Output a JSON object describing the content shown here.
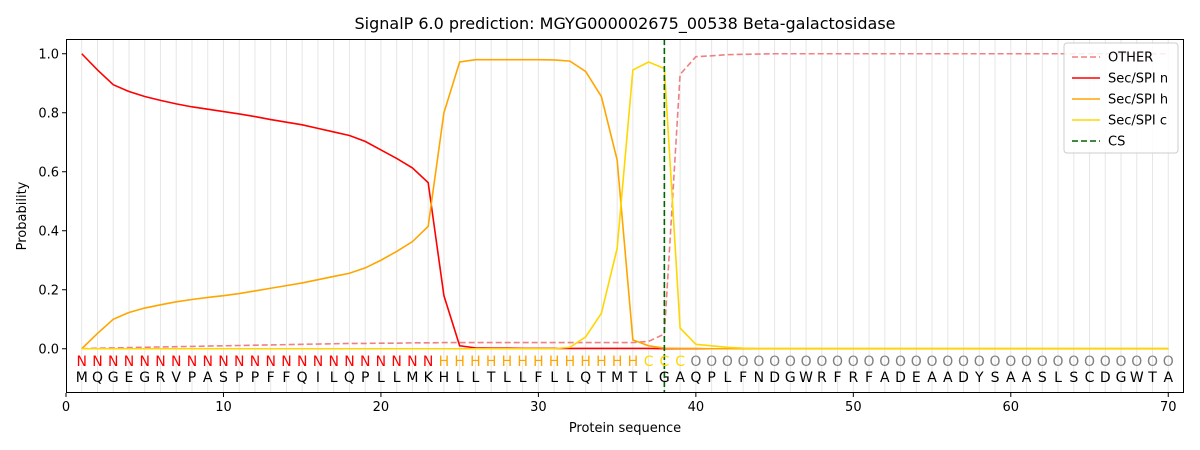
{
  "chart_data": {
    "type": "line",
    "title": "SignalP 6.0 prediction: MGYG000002675_00538 Beta-galactosidase",
    "xlabel": "Protein sequence",
    "ylabel": "Probability",
    "xlim": [
      0,
      71
    ],
    "ylim": [
      -0.15,
      1.05
    ],
    "xticks": [
      0,
      10,
      20,
      30,
      40,
      50,
      60,
      70
    ],
    "yticks": [
      0.0,
      0.2,
      0.4,
      0.6,
      0.8,
      1.0
    ],
    "ytick_labels": [
      "0.0",
      "0.2",
      "0.4",
      "0.6",
      "0.8",
      "1.0"
    ],
    "grid": "vertical lines at each residue",
    "legend_position": "top-right",
    "cleavage_site": 38,
    "sequence": "MQGEGRVPASPPFFQILQPLLMKHLLTLLFLLQTMTLGAQPLFNDGWRFRFADEAADYSAASLSCDGWTA",
    "labels": "NNNNNNNNNNNNNNNNNNNNNNNHHHHHHHHHHHHHCCCOOOOOOOOOOOOOOOOOOOOOOOOOOOOOOOO",
    "label_colors": {
      "N": "#ff0000",
      "H": "#ffa500",
      "C": "#ffd700",
      "O": "#808080"
    },
    "x": [
      1,
      2,
      3,
      4,
      5,
      6,
      7,
      8,
      9,
      10,
      11,
      12,
      13,
      14,
      15,
      16,
      17,
      18,
      19,
      20,
      21,
      22,
      23,
      24,
      25,
      26,
      27,
      28,
      29,
      30,
      31,
      32,
      33,
      34,
      35,
      36,
      37,
      38,
      39,
      40,
      41,
      42,
      43,
      44,
      45,
      46,
      47,
      48,
      49,
      50,
      51,
      52,
      53,
      54,
      55,
      56,
      57,
      58,
      59,
      60,
      61,
      62,
      63,
      64,
      65,
      66,
      67,
      68,
      69,
      70
    ],
    "series": [
      {
        "name": "OTHER",
        "color": "#f08080",
        "dash": true,
        "values": [
          0.0,
          0.002,
          0.003,
          0.004,
          0.005,
          0.006,
          0.007,
          0.008,
          0.009,
          0.01,
          0.011,
          0.012,
          0.013,
          0.014,
          0.015,
          0.016,
          0.017,
          0.018,
          0.018,
          0.019,
          0.019,
          0.02,
          0.02,
          0.021,
          0.021,
          0.021,
          0.021,
          0.021,
          0.021,
          0.021,
          0.021,
          0.021,
          0.021,
          0.021,
          0.021,
          0.021,
          0.025,
          0.05,
          0.93,
          0.99,
          0.993,
          0.997,
          0.998,
          0.999,
          1.0,
          1.0,
          1.0,
          1.0,
          1.0,
          1.0,
          1.0,
          1.0,
          1.0,
          1.0,
          1.0,
          1.0,
          1.0,
          1.0,
          1.0,
          1.0,
          1.0,
          1.0,
          1.0,
          1.0,
          1.0,
          1.0,
          1.0,
          1.0,
          1.0,
          1.0
        ]
      },
      {
        "name": "Sec/SPI n",
        "color": "#ff0000",
        "dash": false,
        "values": [
          1.0,
          0.945,
          0.895,
          0.872,
          0.855,
          0.842,
          0.83,
          0.82,
          0.812,
          0.804,
          0.796,
          0.787,
          0.777,
          0.768,
          0.759,
          0.747,
          0.735,
          0.723,
          0.703,
          0.674,
          0.645,
          0.613,
          0.563,
          0.18,
          0.01,
          0.003,
          0.002,
          0.002,
          0.001,
          0.001,
          0.001,
          0.001,
          0.001,
          0.001,
          0.001,
          0.001,
          0.001,
          0.0,
          0.0,
          0.0,
          0.0,
          0.0,
          0.0,
          0.0,
          0.0,
          0.0,
          0.0,
          0.0,
          0.0,
          0.0,
          0.0,
          0.0,
          0.0,
          0.0,
          0.0,
          0.0,
          0.0,
          0.0,
          0.0,
          0.0,
          0.0,
          0.0,
          0.0,
          0.0,
          0.0,
          0.0,
          0.0,
          0.0,
          0.0,
          0.0
        ]
      },
      {
        "name": "Sec/SPI h",
        "color": "#ffa500",
        "dash": false,
        "values": [
          0.0,
          0.052,
          0.1,
          0.123,
          0.138,
          0.149,
          0.159,
          0.167,
          0.174,
          0.18,
          0.187,
          0.196,
          0.205,
          0.214,
          0.223,
          0.234,
          0.245,
          0.256,
          0.274,
          0.3,
          0.33,
          0.363,
          0.415,
          0.8,
          0.972,
          0.98,
          0.98,
          0.98,
          0.98,
          0.98,
          0.979,
          0.975,
          0.94,
          0.855,
          0.64,
          0.03,
          0.01,
          0.002,
          0.001,
          0.001,
          0.0,
          0.0,
          0.0,
          0.0,
          0.0,
          0.0,
          0.0,
          0.0,
          0.0,
          0.0,
          0.0,
          0.0,
          0.0,
          0.0,
          0.0,
          0.0,
          0.0,
          0.0,
          0.0,
          0.0,
          0.0,
          0.0,
          0.0,
          0.0,
          0.0,
          0.0,
          0.0,
          0.0,
          0.0,
          0.0
        ]
      },
      {
        "name": "Sec/SPI c",
        "color": "#ffd700",
        "dash": false,
        "values": [
          0.0,
          0.0,
          0.0,
          0.0,
          0.0,
          0.0,
          0.0,
          0.0,
          0.0,
          0.0,
          0.0,
          0.0,
          0.0,
          0.0,
          0.0,
          0.0,
          0.0,
          0.0,
          0.0,
          0.0,
          0.0,
          0.0,
          0.0,
          0.0,
          0.0,
          0.0,
          0.0,
          0.0,
          0.0,
          0.0,
          0.0,
          0.005,
          0.04,
          0.12,
          0.34,
          0.945,
          0.972,
          0.95,
          0.07,
          0.015,
          0.01,
          0.005,
          0.002,
          0.001,
          0.001,
          0.001,
          0.001,
          0.001,
          0.001,
          0.001,
          0.001,
          0.001,
          0.001,
          0.001,
          0.001,
          0.001,
          0.001,
          0.001,
          0.001,
          0.001,
          0.001,
          0.001,
          0.001,
          0.001,
          0.001,
          0.001,
          0.001,
          0.001,
          0.001,
          0.001
        ]
      }
    ],
    "legend": [
      {
        "name": "OTHER",
        "color": "#f08080",
        "style": "dashed"
      },
      {
        "name": "Sec/SPI n",
        "color": "#ff0000",
        "style": "solid"
      },
      {
        "name": "Sec/SPI h",
        "color": "#ffa500",
        "style": "solid"
      },
      {
        "name": "Sec/SPI c",
        "color": "#ffd700",
        "style": "solid"
      },
      {
        "name": "CS",
        "color": "#006400",
        "style": "dashed"
      }
    ]
  }
}
